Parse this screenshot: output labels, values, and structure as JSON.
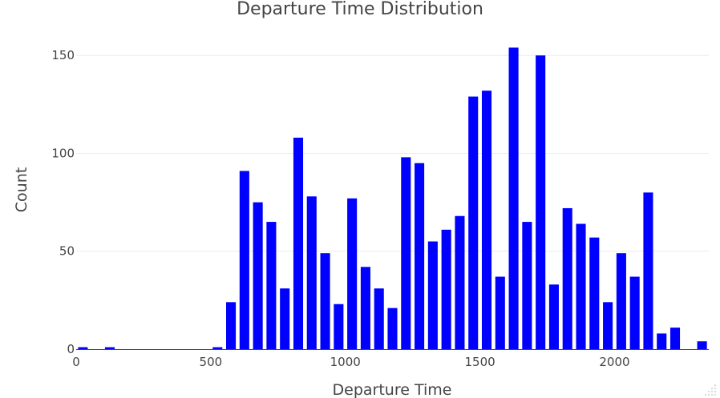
{
  "chart_data": {
    "type": "bar",
    "title": "Departure Time Distribution",
    "xlabel": "Departure Time",
    "ylabel": "Count",
    "xlim": [
      0,
      2350
    ],
    "ylim": [
      0,
      155
    ],
    "bin_width": 50,
    "x_ticks": [
      0,
      500,
      1000,
      1500,
      2000
    ],
    "y_ticks": [
      0,
      50,
      100,
      150
    ],
    "grid": true,
    "bar_color": "#0000ff",
    "bins": [
      {
        "start": 0,
        "value": 1
      },
      {
        "start": 100,
        "value": 1
      },
      {
        "start": 500,
        "value": 1
      },
      {
        "start": 550,
        "value": 24
      },
      {
        "start": 600,
        "value": 91
      },
      {
        "start": 650,
        "value": 75
      },
      {
        "start": 700,
        "value": 65
      },
      {
        "start": 750,
        "value": 31
      },
      {
        "start": 800,
        "value": 108
      },
      {
        "start": 850,
        "value": 78
      },
      {
        "start": 900,
        "value": 49
      },
      {
        "start": 950,
        "value": 23
      },
      {
        "start": 1000,
        "value": 77
      },
      {
        "start": 1050,
        "value": 42
      },
      {
        "start": 1100,
        "value": 31
      },
      {
        "start": 1150,
        "value": 21
      },
      {
        "start": 1200,
        "value": 98
      },
      {
        "start": 1250,
        "value": 95
      },
      {
        "start": 1300,
        "value": 55
      },
      {
        "start": 1350,
        "value": 61
      },
      {
        "start": 1400,
        "value": 68
      },
      {
        "start": 1450,
        "value": 129
      },
      {
        "start": 1500,
        "value": 132
      },
      {
        "start": 1550,
        "value": 37
      },
      {
        "start": 1600,
        "value": 154
      },
      {
        "start": 1650,
        "value": 65
      },
      {
        "start": 1700,
        "value": 150
      },
      {
        "start": 1750,
        "value": 33
      },
      {
        "start": 1800,
        "value": 72
      },
      {
        "start": 1850,
        "value": 64
      },
      {
        "start": 1900,
        "value": 57
      },
      {
        "start": 1950,
        "value": 24
      },
      {
        "start": 2000,
        "value": 49
      },
      {
        "start": 2050,
        "value": 37
      },
      {
        "start": 2100,
        "value": 80
      },
      {
        "start": 2150,
        "value": 8
      },
      {
        "start": 2200,
        "value": 11
      },
      {
        "start": 2300,
        "value": 4
      }
    ]
  }
}
